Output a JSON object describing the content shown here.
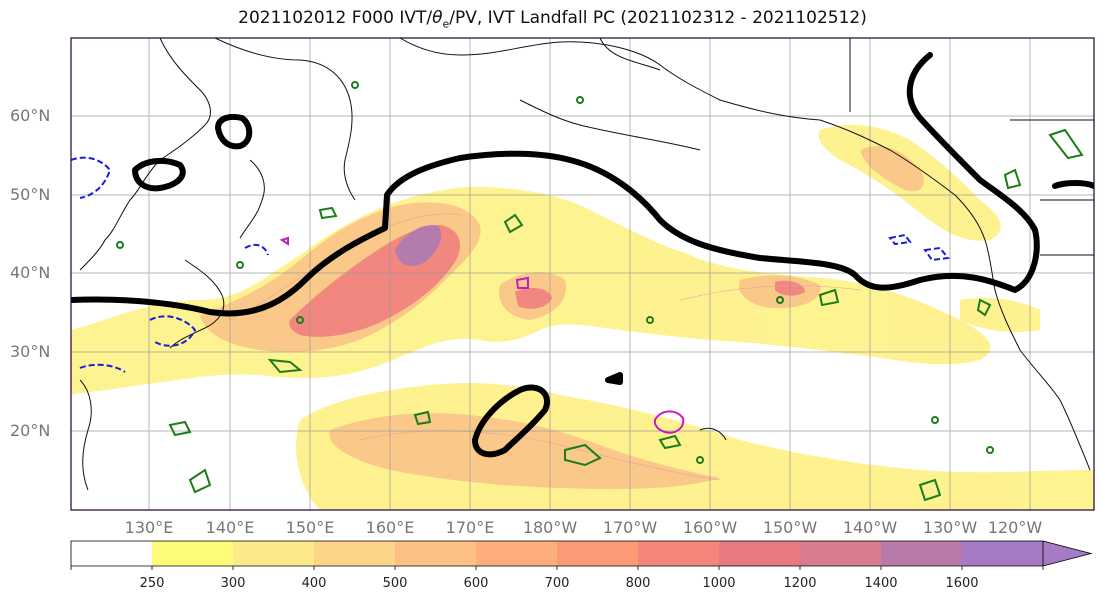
{
  "title": "2021102012 F000 IVT/θe/PV, IVT Landfall PC (2021102312 - 2021102512)",
  "title_parts": {
    "pre": "2021102012 F000 IVT/",
    "theta": "θ",
    "sub": "e",
    "post": "/PV, IVT Landfall PC (2021102312 - 2021102512)"
  },
  "lat_labels": [
    "60°N",
    "50°N",
    "40°N",
    "30°N",
    "20°N"
  ],
  "lon_labels": [
    "130°E",
    "140°E",
    "150°E",
    "160°E",
    "170°E",
    "180°W",
    "170°W",
    "160°W",
    "150°W",
    "140°W",
    "130°W",
    "120°W"
  ],
  "colorbar": {
    "ticks": [
      "250",
      "300",
      "400",
      "500",
      "600",
      "700",
      "800",
      "1000",
      "1200",
      "1400",
      "1600"
    ],
    "colors": [
      "#ffffff",
      "#fdfc7a",
      "#fde98a",
      "#fdd58a",
      "#fdc283",
      "#fdae7c",
      "#fc9a76",
      "#f7867a",
      "#e97880",
      "#d87b8d",
      "#b77aa8",
      "#a57bc5"
    ]
  },
  "legend_colors": {
    "ivt_low": "#fdf28a",
    "ivt_mid": "#f7a77f",
    "ivt_high": "#a976b8",
    "contour_thick": "#000000",
    "contour_green": "#1a7d1a",
    "contour_blue": "#1a1ae0",
    "contour_magenta": "#c21cc2"
  }
}
